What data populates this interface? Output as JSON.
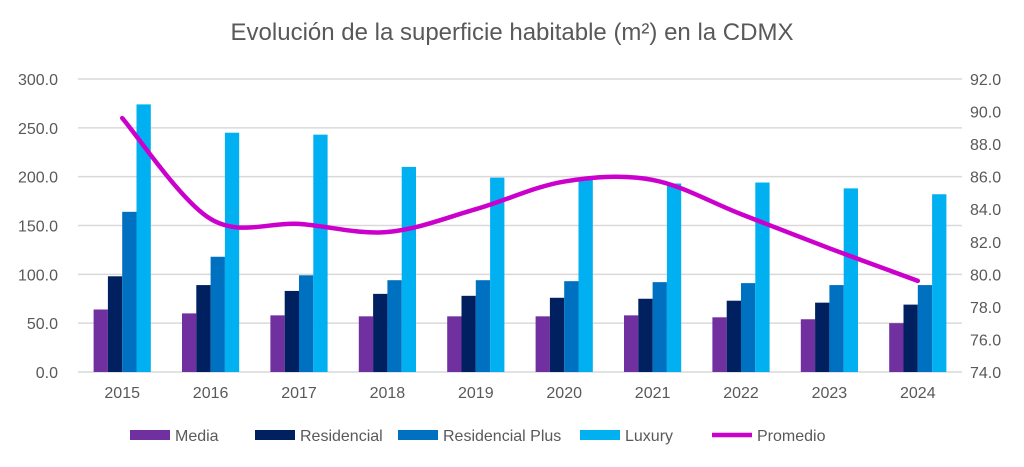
{
  "chart_data": {
    "type": "bar",
    "title": "Evolución de la superficie habitable (m²) en la CDMX",
    "categories": [
      "2015",
      "2016",
      "2017",
      "2018",
      "2019",
      "2020",
      "2021",
      "2022",
      "2023",
      "2024"
    ],
    "ylim": [
      0,
      300
    ],
    "y_ticks": [
      "0.0",
      "50.0",
      "100.0",
      "150.0",
      "200.0",
      "250.0",
      "300.0"
    ],
    "y2lim": [
      74,
      92
    ],
    "y2_ticks": [
      "74.0",
      "76.0",
      "78.0",
      "80.0",
      "82.0",
      "84.0",
      "86.0",
      "88.0",
      "90.0",
      "92.0"
    ],
    "grid": true,
    "legend_position": "bottom",
    "series": [
      {
        "name": "Media",
        "type": "bar",
        "axis": "left",
        "color": "#7030A0",
        "values": [
          64,
          60,
          58,
          57,
          57,
          57,
          58,
          56,
          54,
          50
        ]
      },
      {
        "name": "Residencial",
        "type": "bar",
        "axis": "left",
        "color": "#002060",
        "values": [
          98,
          89,
          83,
          80,
          78,
          76,
          75,
          73,
          71,
          69
        ]
      },
      {
        "name": "Residencial Plus",
        "type": "bar",
        "axis": "left",
        "color": "#0070C0",
        "values": [
          164,
          118,
          99,
          94,
          94,
          93,
          92,
          91,
          89,
          89
        ]
      },
      {
        "name": "Luxury",
        "type": "bar",
        "axis": "left",
        "color": "#00B0F0",
        "values": [
          274,
          245,
          243,
          210,
          199,
          199,
          193,
          194,
          188,
          182
        ]
      },
      {
        "name": "Promedio",
        "type": "line",
        "axis": "right",
        "color": "#CC00CC",
        "values": [
          89.6,
          83.4,
          83.1,
          82.6,
          84.0,
          85.7,
          85.8,
          83.7,
          81.6,
          79.6
        ]
      }
    ]
  }
}
